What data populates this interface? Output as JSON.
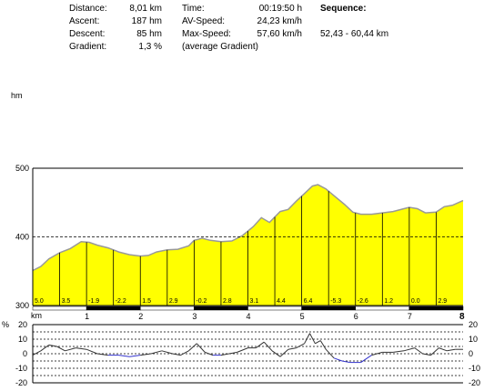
{
  "stats": {
    "distance_label": "Distance:",
    "distance_value": "8,01 km",
    "ascent_label": "Ascent:",
    "ascent_value": "187 hm",
    "descent_label": "Descent:",
    "descent_value": "85 hm",
    "gradient_label": "Gradient:",
    "gradient_value": "1,3 %",
    "time_label": "Time:",
    "time_value": "00:19:50 h",
    "avspeed_label": "AV-Speed:",
    "avspeed_value": "24,23 km/h",
    "maxspeed_label": "Max-Speed:",
    "maxspeed_value": "57,60 km/h",
    "avg_gradient_note": "(average Gradient)",
    "sequence_label": "Sequence:",
    "sequence_value": "52,43 - 60,44 km"
  },
  "chart_data": [
    {
      "type": "area",
      "ylabel": "hm",
      "xlabel": "km",
      "xlim": [
        0,
        8
      ],
      "ylim": [
        300,
        500
      ],
      "yticks": [
        "300",
        "400",
        "500"
      ],
      "xticks": [
        "1",
        "2",
        "3",
        "4",
        "5",
        "6",
        "7",
        "8"
      ],
      "fill_color": "#ffff00",
      "line_color": "#999999",
      "x": [
        0,
        0.15,
        0.3,
        0.5,
        0.7,
        0.9,
        1.05,
        1.2,
        1.4,
        1.6,
        1.8,
        2.0,
        2.15,
        2.3,
        2.5,
        2.7,
        2.9,
        3.0,
        3.15,
        3.3,
        3.5,
        3.7,
        3.9,
        4.1,
        4.25,
        4.4,
        4.6,
        4.75,
        4.9,
        5.05,
        5.2,
        5.3,
        5.45,
        5.6,
        5.8,
        5.95,
        6.1,
        6.3,
        6.5,
        6.7,
        6.9,
        7.0,
        7.15,
        7.3,
        7.5,
        7.65,
        7.8,
        8.0
      ],
      "values": [
        351,
        357,
        368,
        377,
        383,
        393,
        392,
        388,
        384,
        378,
        374,
        372,
        373,
        378,
        381,
        382,
        387,
        395,
        398,
        395,
        393,
        394,
        402,
        415,
        428,
        421,
        437,
        440,
        452,
        463,
        474,
        476,
        470,
        460,
        447,
        436,
        433,
        433,
        435,
        437,
        441,
        443,
        441,
        435,
        436,
        444,
        446,
        453
      ],
      "segment_gradients": [
        "5.0",
        "3.5",
        "-1.9",
        "-2.2",
        "1.5",
        "2.9",
        "-0.2",
        "2.8",
        "3.1",
        "4.4",
        "6.4",
        "-5.3",
        "-2.6",
        "1.2",
        "0.0",
        "2.9"
      ]
    },
    {
      "type": "line",
      "ylabel": "%",
      "xlim": [
        0,
        8
      ],
      "ylim": [
        -20,
        20
      ],
      "yticks": [
        "20",
        "10",
        "0",
        "-10",
        "-20"
      ],
      "line_color": "#333333",
      "negative_color": "#3333cc",
      "x": [
        0,
        0.15,
        0.3,
        0.45,
        0.6,
        0.8,
        1.0,
        1.2,
        1.4,
        1.6,
        1.8,
        2.0,
        2.2,
        2.4,
        2.6,
        2.75,
        2.9,
        3.05,
        3.2,
        3.35,
        3.5,
        3.65,
        3.8,
        4.0,
        4.15,
        4.3,
        4.45,
        4.6,
        4.75,
        4.9,
        5.05,
        5.15,
        5.25,
        5.35,
        5.45,
        5.6,
        5.75,
        5.9,
        6.1,
        6.3,
        6.5,
        6.7,
        6.9,
        7.1,
        7.25,
        7.4,
        7.55,
        7.7,
        7.85,
        8.0
      ],
      "values": [
        -1,
        2,
        6,
        5,
        2,
        4,
        3,
        0,
        -1,
        -1,
        -2,
        -1,
        0,
        2,
        0,
        -1,
        2,
        7,
        1,
        -1,
        -1,
        0,
        1,
        4,
        4,
        8,
        2,
        -2,
        3,
        4,
        7,
        14,
        7,
        9,
        3,
        -3,
        -5,
        -6,
        -6,
        -1,
        1,
        1,
        2,
        4,
        0,
        -1,
        4,
        2,
        3,
        3
      ]
    }
  ]
}
